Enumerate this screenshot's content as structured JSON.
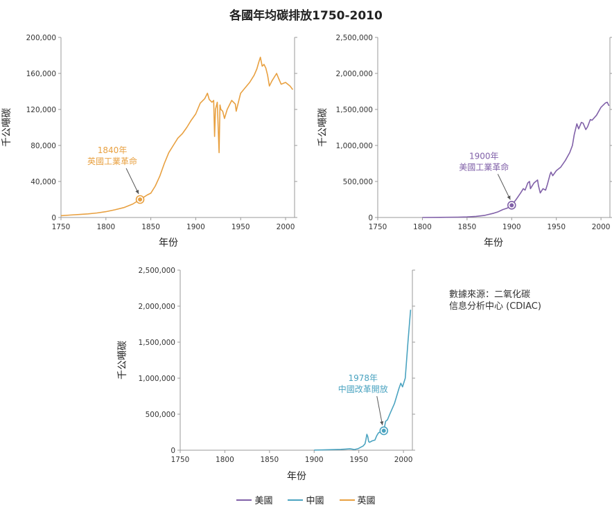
{
  "title": "各國年均碳排放1750-2010",
  "source_note": {
    "line1": "數據來源：二氧化碳",
    "line2": "信息分析中心 (CDIAC)"
  },
  "legend": [
    {
      "name": "美國",
      "color": "#8060a8"
    },
    {
      "name": "中國",
      "color": "#4aa3c0"
    },
    {
      "name": "英國",
      "color": "#e8a040"
    }
  ],
  "chart_data": [
    {
      "type": "line",
      "series_name": "英國",
      "color": "#e8a040",
      "xlabel": "年份",
      "ylabel": "千公噸碳",
      "xlim": [
        1750,
        2010
      ],
      "ylim": [
        0,
        200000
      ],
      "xticks": [
        1750,
        1800,
        1850,
        1900,
        1950,
        2000
      ],
      "yticks": [
        0,
        40000,
        80000,
        120000,
        160000,
        200000
      ],
      "ytick_labels": [
        "0",
        "40,000",
        "80,000",
        "120,000",
        "160,000",
        "200,000"
      ],
      "x": [
        1750,
        1760,
        1770,
        1780,
        1790,
        1800,
        1810,
        1820,
        1830,
        1838,
        1842,
        1846,
        1850,
        1855,
        1860,
        1865,
        1870,
        1875,
        1880,
        1885,
        1890,
        1895,
        1900,
        1905,
        1910,
        1913,
        1915,
        1918,
        1920,
        1921,
        1922,
        1924,
        1926,
        1927,
        1928,
        1930,
        1932,
        1935,
        1940,
        1944,
        1945,
        1948,
        1950,
        1955,
        1960,
        1965,
        1968,
        1970,
        1972,
        1974,
        1976,
        1978,
        1980,
        1982,
        1985,
        1990,
        1992,
        1995,
        2000,
        2005,
        2008
      ],
      "y": [
        2000,
        2700,
        3300,
        4000,
        5000,
        6500,
        8500,
        11000,
        15000,
        20000,
        22500,
        25000,
        27000,
        35000,
        46000,
        60000,
        72000,
        80000,
        88000,
        93000,
        100000,
        108000,
        115000,
        127000,
        132000,
        138000,
        131000,
        128000,
        130000,
        90000,
        120000,
        128000,
        72000,
        125000,
        120000,
        118000,
        110000,
        120000,
        130000,
        126000,
        118000,
        130000,
        138000,
        144000,
        150000,
        158000,
        165000,
        172000,
        178000,
        168000,
        170000,
        166000,
        158000,
        146000,
        152000,
        160000,
        155000,
        148000,
        150000,
        146000,
        142000
      ],
      "annotation": {
        "year_label": "1840年",
        "text": "英國工業革命",
        "x": 1838,
        "y": 20000
      }
    },
    {
      "type": "line",
      "series_name": "美國",
      "color": "#8060a8",
      "xlabel": "年份",
      "ylabel": "千公噸碳",
      "xlim": [
        1750,
        2010
      ],
      "ylim": [
        0,
        2500000
      ],
      "xticks": [
        1750,
        1800,
        1850,
        1900,
        1950,
        2000
      ],
      "yticks": [
        0,
        500000,
        1000000,
        1500000,
        2000000,
        2500000
      ],
      "ytick_labels": [
        "0",
        "500,000",
        "1,000,000",
        "1,500,000",
        "2,000,000",
        "2,500,000"
      ],
      "x": [
        1800,
        1820,
        1840,
        1850,
        1860,
        1870,
        1880,
        1885,
        1890,
        1895,
        1900,
        1905,
        1910,
        1913,
        1915,
        1918,
        1920,
        1921,
        1925,
        1929,
        1930,
        1932,
        1935,
        1938,
        1940,
        1943,
        1944,
        1946,
        1950,
        1955,
        1960,
        1965,
        1968,
        1970,
        1973,
        1975,
        1978,
        1980,
        1983,
        1985,
        1988,
        1990,
        1995,
        2000,
        2005,
        2007,
        2009
      ],
      "y": [
        300,
        2000,
        5000,
        8000,
        15000,
        30000,
        60000,
        80000,
        110000,
        130000,
        170000,
        250000,
        340000,
        400000,
        380000,
        480000,
        500000,
        400000,
        480000,
        520000,
        440000,
        340000,
        400000,
        380000,
        460000,
        600000,
        630000,
        580000,
        650000,
        700000,
        790000,
        900000,
        1000000,
        1150000,
        1300000,
        1230000,
        1320000,
        1310000,
        1220000,
        1260000,
        1360000,
        1350000,
        1420000,
        1530000,
        1590000,
        1600000,
        1550000
      ],
      "annotation": {
        "year_label": "1900年",
        "text": "美國工業革命",
        "x": 1900,
        "y": 170000
      }
    },
    {
      "type": "line",
      "series_name": "中國",
      "color": "#4aa3c0",
      "xlabel": "年份",
      "ylabel": "千公噸碳",
      "xlim": [
        1750,
        2010
      ],
      "ylim": [
        0,
        2500000
      ],
      "xticks": [
        1750,
        1800,
        1850,
        1900,
        1950,
        2000
      ],
      "yticks": [
        0,
        500000,
        1000000,
        1500000,
        2000000,
        2500000
      ],
      "ytick_labels": [
        "0",
        "500,000",
        "1,000,000",
        "1,500,000",
        "2,000,000",
        "2,500,000"
      ],
      "x": [
        1900,
        1910,
        1920,
        1930,
        1935,
        1940,
        1945,
        1949,
        1952,
        1955,
        1957,
        1958,
        1959,
        1960,
        1961,
        1962,
        1965,
        1968,
        1970,
        1972,
        1975,
        1978,
        1980,
        1982,
        1985,
        1990,
        1995,
        1997,
        1999,
        2000,
        2002,
        2005,
        2008
      ],
      "y": [
        2000,
        5000,
        8000,
        12000,
        15000,
        20000,
        10000,
        20000,
        40000,
        60000,
        90000,
        150000,
        220000,
        190000,
        120000,
        110000,
        130000,
        140000,
        200000,
        240000,
        260000,
        270000,
        400000,
        420000,
        510000,
        650000,
        860000,
        930000,
        880000,
        920000,
        1000000,
        1500000,
        1950000
      ],
      "annotation": {
        "year_label": "1978年",
        "text": "中國改革開放",
        "x": 1978,
        "y": 270000
      }
    }
  ]
}
